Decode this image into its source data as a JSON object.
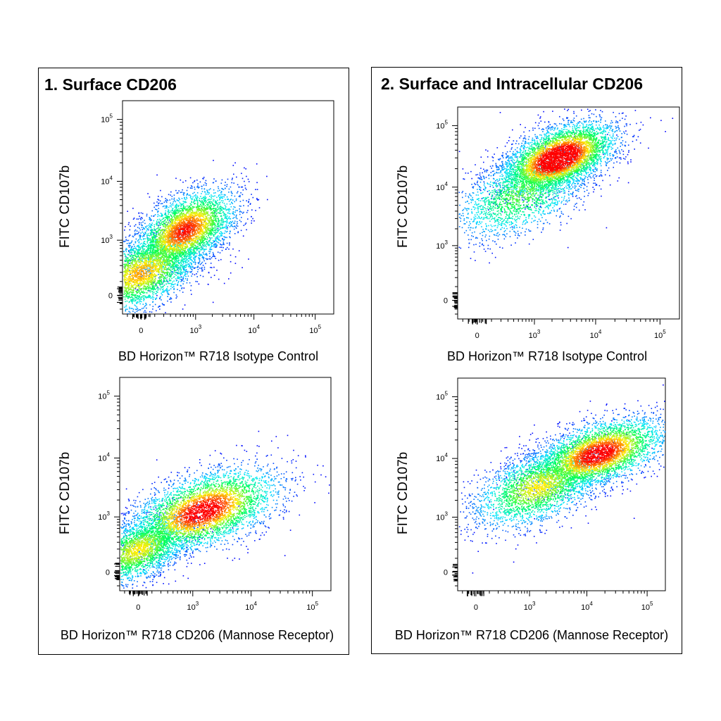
{
  "panels": [
    {
      "title": "1. Surface CD206"
    },
    {
      "title": "2. Surface and Intracellular CD206"
    }
  ],
  "chart_data": [
    {
      "type": "scatter",
      "panel": 1,
      "title": "",
      "xlabel": "BD Horizon™ R718 Isotype Control",
      "ylabel": "FITC CD107b",
      "x_scale": "biexponential",
      "y_scale": "biexponential",
      "xlim": [
        -150,
        200000
      ],
      "ylim": [
        -150,
        200000
      ],
      "x_ticks": [
        "0",
        "10^3",
        "10^4",
        "10^5"
      ],
      "y_ticks": [
        "0",
        "10^3",
        "10^4",
        "10^5"
      ],
      "colormap": [
        "#0000ff",
        "#00e5ff",
        "#00ff55",
        "#ffee00",
        "#ff0000"
      ],
      "populations": [
        {
          "center": [
            0,
            200
          ],
          "spread": [
            0.45,
            0.35
          ],
          "weight": 0.45
        },
        {
          "center": [
            600,
            1500
          ],
          "spread": [
            0.38,
            0.35
          ],
          "weight": 0.55
        }
      ]
    },
    {
      "type": "scatter",
      "panel": 1,
      "title": "",
      "xlabel": "BD Horizon™ R718 CD206 (Mannose Receptor)",
      "ylabel": "FITC CD107b",
      "x_scale": "biexponential",
      "y_scale": "biexponential",
      "xlim": [
        -150,
        200000
      ],
      "ylim": [
        -150,
        200000
      ],
      "x_ticks": [
        "0",
        "10^3",
        "10^4",
        "10^5"
      ],
      "y_ticks": [
        "0",
        "10^3",
        "10^4",
        "10^5"
      ],
      "colormap": [
        "#0000ff",
        "#00e5ff",
        "#00ff55",
        "#ffee00",
        "#ff0000"
      ],
      "populations": [
        {
          "center": [
            0,
            200
          ],
          "spread": [
            0.4,
            0.3
          ],
          "weight": 0.4
        },
        {
          "center": [
            1500,
            1300
          ],
          "spread": [
            0.55,
            0.35
          ],
          "weight": 0.6
        }
      ]
    },
    {
      "type": "scatter",
      "panel": 2,
      "title": "",
      "xlabel": "BD Horizon™ R718 Isotype Control",
      "ylabel": "FITC CD107b",
      "x_scale": "biexponential",
      "y_scale": "biexponential",
      "xlim": [
        -150,
        200000
      ],
      "ylim": [
        -150,
        200000
      ],
      "x_ticks": [
        "0",
        "10^3",
        "10^4",
        "10^5"
      ],
      "y_ticks": [
        "0",
        "10^3",
        "10^4",
        "10^5"
      ],
      "colormap": [
        "#0000ff",
        "#00e5ff",
        "#00ff55",
        "#ffee00",
        "#ff0000"
      ],
      "populations": [
        {
          "center": [
            2500,
            30000
          ],
          "spread": [
            0.4,
            0.3
          ],
          "weight": 0.7
        },
        {
          "center": [
            600,
            8000
          ],
          "spread": [
            0.5,
            0.4
          ],
          "weight": 0.3
        }
      ]
    },
    {
      "type": "scatter",
      "panel": 2,
      "title": "",
      "xlabel": "BD Horizon™ R718 CD206 (Mannose Receptor)",
      "ylabel": "FITC CD107b",
      "x_scale": "biexponential",
      "y_scale": "biexponential",
      "xlim": [
        -150,
        200000
      ],
      "ylim": [
        -150,
        200000
      ],
      "x_ticks": [
        "0",
        "10^3",
        "10^4",
        "10^5"
      ],
      "y_ticks": [
        "0",
        "10^3",
        "10^4",
        "10^5"
      ],
      "colormap": [
        "#0000ff",
        "#00e5ff",
        "#00ff55",
        "#ffee00",
        "#ff0000"
      ],
      "populations": [
        {
          "center": [
            15000,
            12000
          ],
          "spread": [
            0.5,
            0.3
          ],
          "weight": 0.6
        },
        {
          "center": [
            1500,
            3500
          ],
          "spread": [
            0.5,
            0.35
          ],
          "weight": 0.4
        }
      ]
    }
  ]
}
